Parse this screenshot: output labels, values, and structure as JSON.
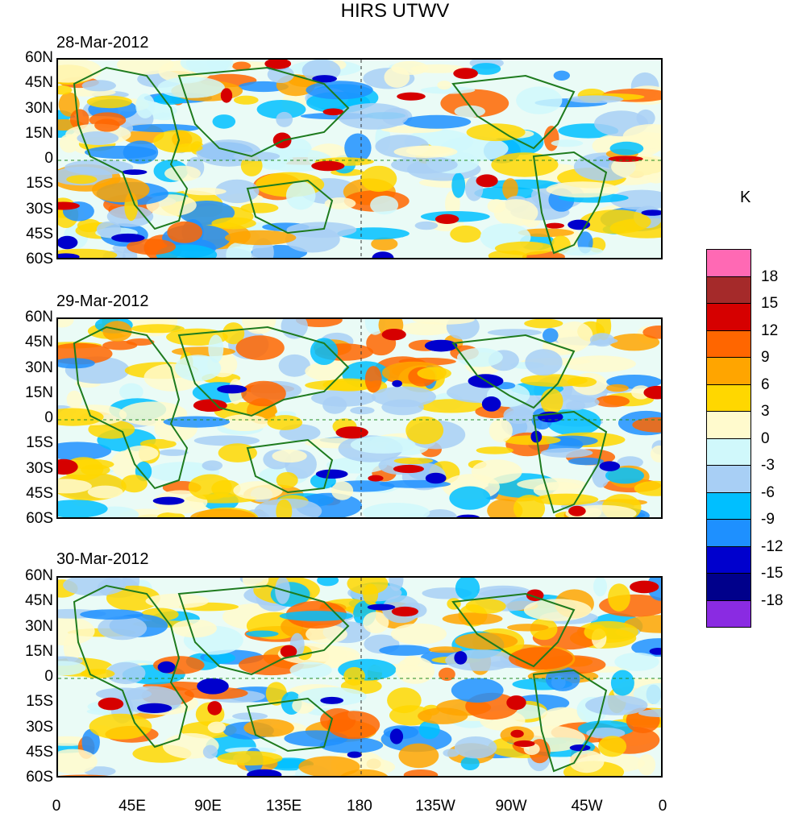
{
  "title": "HIRS UTWV",
  "units_label": "K",
  "panels": [
    {
      "date": "28-Mar-2012"
    },
    {
      "date": "29-Mar-2012"
    },
    {
      "date": "30-Mar-2012"
    }
  ],
  "lat_labels": [
    "60N",
    "45N",
    "30N",
    "15N",
    "0",
    "15S",
    "30S",
    "45S",
    "60S"
  ],
  "lon_labels": [
    "0",
    "45E",
    "90E",
    "135E",
    "180",
    "135W",
    "90W",
    "45W",
    "0"
  ],
  "colorbar": {
    "levels": [
      "18",
      "15",
      "12",
      "9",
      "6",
      "3",
      "0",
      "-3",
      "-6",
      "-9",
      "-12",
      "-15",
      "-18"
    ],
    "colors": [
      "#ff69b4",
      "#a52a2a",
      "#d60000",
      "#ff6600",
      "#ffa500",
      "#ffd700",
      "#fffacd",
      "#d0f8fb",
      "#a8cff5",
      "#00bfff",
      "#1e90ff",
      "#0000cd",
      "#00008b",
      "#8a2be2"
    ]
  },
  "colors": {
    "coast": "#1e7b1e",
    "dashed_ref": "#228b22"
  }
}
